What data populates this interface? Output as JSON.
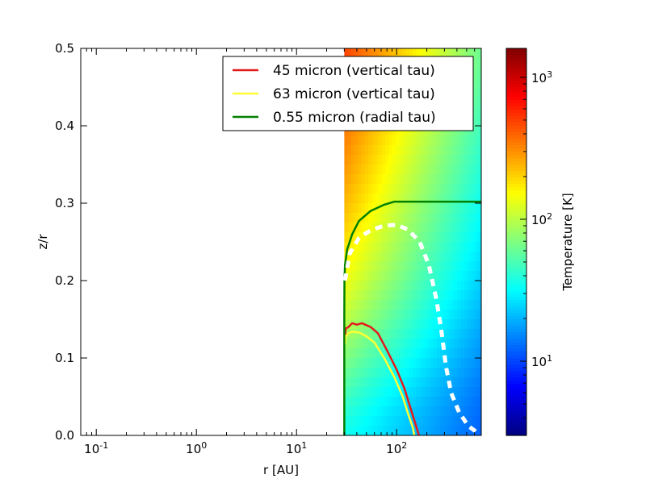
{
  "chart_data": {
    "type": "heatmap",
    "xlabel": "r [AU]",
    "ylabel": "z/r",
    "x_scale": "log",
    "xlim": [
      0.07,
      700
    ],
    "ylim": [
      0,
      0.5
    ],
    "x_ticks": [
      {
        "value": 0.1,
        "base": "10",
        "exp": "-1"
      },
      {
        "value": 1,
        "base": "10",
        "exp": "0"
      },
      {
        "value": 10,
        "base": "10",
        "exp": "1"
      },
      {
        "value": 100,
        "base": "10",
        "exp": "2"
      }
    ],
    "y_ticks": [
      {
        "value": 0.0,
        "label": "0.0"
      },
      {
        "value": 0.1,
        "label": "0.1"
      },
      {
        "value": 0.2,
        "label": "0.2"
      },
      {
        "value": 0.3,
        "label": "0.3"
      },
      {
        "value": 0.4,
        "label": "0.4"
      },
      {
        "value": 0.5,
        "label": "0.5"
      }
    ],
    "heatmap": {
      "r_inner": 30,
      "r_outer": 700,
      "colormap": "jet"
    },
    "colorbar": {
      "label": "Temperature [K]",
      "scale": "log",
      "range": [
        3,
        1600
      ],
      "ticks": [
        {
          "value": 10,
          "base": "10",
          "exp": "1"
        },
        {
          "value": 100,
          "base": "10",
          "exp": "2"
        },
        {
          "value": 1000,
          "base": "10",
          "exp": "3"
        }
      ]
    },
    "legend": {
      "placement": "upper-right",
      "entries": [
        {
          "label": "45 micron (vertical tau)",
          "color": "#e31a1c"
        },
        {
          "label": "63 micron (vertical tau)",
          "color": "#ffff33"
        },
        {
          "label": "0.55 micron (radial tau)",
          "color": "#008000"
        }
      ]
    },
    "series": [
      {
        "name": "45 micron (vertical tau)",
        "color": "#e31a1c",
        "style": "solid",
        "points": [
          [
            30.5,
            0.128
          ],
          [
            31,
            0.138
          ],
          [
            33,
            0.14
          ],
          [
            36,
            0.145
          ],
          [
            40,
            0.143
          ],
          [
            45,
            0.145
          ],
          [
            55,
            0.14
          ],
          [
            65,
            0.132
          ],
          [
            80,
            0.11
          ],
          [
            100,
            0.085
          ],
          [
            120,
            0.06
          ],
          [
            140,
            0.032
          ],
          [
            160,
            0.008
          ],
          [
            167,
            0.0
          ]
        ]
      },
      {
        "name": "63 micron (vertical tau)",
        "color": "#ffff33",
        "style": "solid",
        "points": [
          [
            30.5,
            0.118
          ],
          [
            31,
            0.128
          ],
          [
            33,
            0.132
          ],
          [
            36,
            0.134
          ],
          [
            42,
            0.133
          ],
          [
            50,
            0.128
          ],
          [
            60,
            0.12
          ],
          [
            75,
            0.1
          ],
          [
            95,
            0.075
          ],
          [
            115,
            0.05
          ],
          [
            130,
            0.028
          ],
          [
            145,
            0.01
          ],
          [
            150,
            0.0
          ]
        ]
      },
      {
        "name": "0.55 micron (radial tau)",
        "color": "#008000",
        "style": "solid",
        "points": [
          [
            30,
            0.0
          ],
          [
            30,
            0.15
          ],
          [
            30.1,
            0.2
          ],
          [
            30.5,
            0.22
          ],
          [
            32,
            0.24
          ],
          [
            36,
            0.26
          ],
          [
            42,
            0.277
          ],
          [
            55,
            0.29
          ],
          [
            75,
            0.298
          ],
          [
            95,
            0.302
          ],
          [
            700,
            0.302
          ]
        ]
      },
      {
        "name": "",
        "color": "#ffffff",
        "style": "dashed",
        "points": [
          [
            30.5,
            0.2
          ],
          [
            34,
            0.235
          ],
          [
            42,
            0.255
          ],
          [
            55,
            0.265
          ],
          [
            75,
            0.271
          ],
          [
            100,
            0.272
          ],
          [
            130,
            0.266
          ],
          [
            170,
            0.25
          ],
          [
            210,
            0.22
          ],
          [
            250,
            0.175
          ],
          [
            280,
            0.135
          ],
          [
            310,
            0.09
          ],
          [
            350,
            0.055
          ],
          [
            420,
            0.03
          ],
          [
            520,
            0.012
          ],
          [
            650,
            0.003
          ]
        ]
      }
    ]
  }
}
